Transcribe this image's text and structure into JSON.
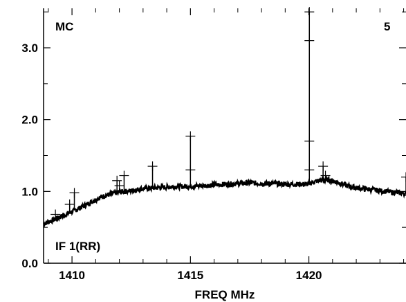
{
  "chart_data": {
    "type": "line",
    "corner_labels": {
      "top_left": "MC",
      "top_right": "5",
      "bottom_left": "IF 1(RR)"
    },
    "xlabel": "FREQ MHz",
    "ylabel": "",
    "xlim": [
      1408.8,
      1424.1
    ],
    "ylim": [
      0.0,
      3.55
    ],
    "x_ticks": [
      1410,
      1415,
      1420
    ],
    "x_tick_labels": [
      "1410",
      "1415",
      "1420"
    ],
    "y_ticks": [
      0.0,
      1.0,
      2.0,
      3.0
    ],
    "y_tick_labels": [
      "0.0",
      "1.0",
      "2.0",
      "3.0"
    ],
    "grid": false,
    "color": "#000000",
    "series": [
      {
        "values_style": "continuous",
        "x": [
          1408.8,
          1409.2,
          1409.6,
          1410.0,
          1410.4,
          1410.8,
          1411.2,
          1411.6,
          1412.0,
          1412.5,
          1413.0,
          1413.5,
          1414.0,
          1414.5,
          1415.0,
          1415.5,
          1416.0,
          1416.5,
          1417.0,
          1417.5,
          1418.0,
          1418.5,
          1419.0,
          1419.5,
          1419.9,
          1420.1,
          1420.4,
          1420.8,
          1421.2,
          1421.6,
          1422.0,
          1422.5,
          1423.0,
          1423.5,
          1424.1
        ],
        "y": [
          0.55,
          0.6,
          0.66,
          0.72,
          0.78,
          0.85,
          0.92,
          0.96,
          0.99,
          1.01,
          1.04,
          1.05,
          1.06,
          1.07,
          1.07,
          1.08,
          1.09,
          1.1,
          1.11,
          1.12,
          1.11,
          1.11,
          1.1,
          1.1,
          1.1,
          1.12,
          1.15,
          1.16,
          1.13,
          1.08,
          1.05,
          1.03,
          1.01,
          0.99,
          0.97
        ]
      }
    ],
    "spikes": [
      {
        "x": 1409.9,
        "y": 0.82
      },
      {
        "x": 1410.1,
        "y": 0.98
      },
      {
        "x": 1411.9,
        "y": 1.15
      },
      {
        "x": 1412.2,
        "y": 1.22
      },
      {
        "x": 1413.4,
        "y": 1.35
      },
      {
        "x": 1415.0,
        "y": 1.77
      },
      {
        "x": 1420.02,
        "y": 3.5
      },
      {
        "x": 1420.6,
        "y": 1.35
      },
      {
        "x": 1424.1,
        "y": 1.2
      }
    ],
    "markers": [
      {
        "x": 1409.3,
        "y": 0.68
      },
      {
        "x": 1409.9,
        "y": 0.82
      },
      {
        "x": 1410.1,
        "y": 0.98
      },
      {
        "x": 1411.9,
        "y": 1.15
      },
      {
        "x": 1412.2,
        "y": 1.22
      },
      {
        "x": 1412.0,
        "y": 1.08
      },
      {
        "x": 1413.4,
        "y": 1.35
      },
      {
        "x": 1415.0,
        "y": 1.77
      },
      {
        "x": 1415.0,
        "y": 1.3
      },
      {
        "x": 1420.02,
        "y": 3.5
      },
      {
        "x": 1420.02,
        "y": 3.1
      },
      {
        "x": 1420.02,
        "y": 1.7
      },
      {
        "x": 1420.02,
        "y": 1.3
      },
      {
        "x": 1420.6,
        "y": 1.35
      },
      {
        "x": 1420.7,
        "y": 1.22
      },
      {
        "x": 1424.1,
        "y": 1.2
      }
    ]
  }
}
